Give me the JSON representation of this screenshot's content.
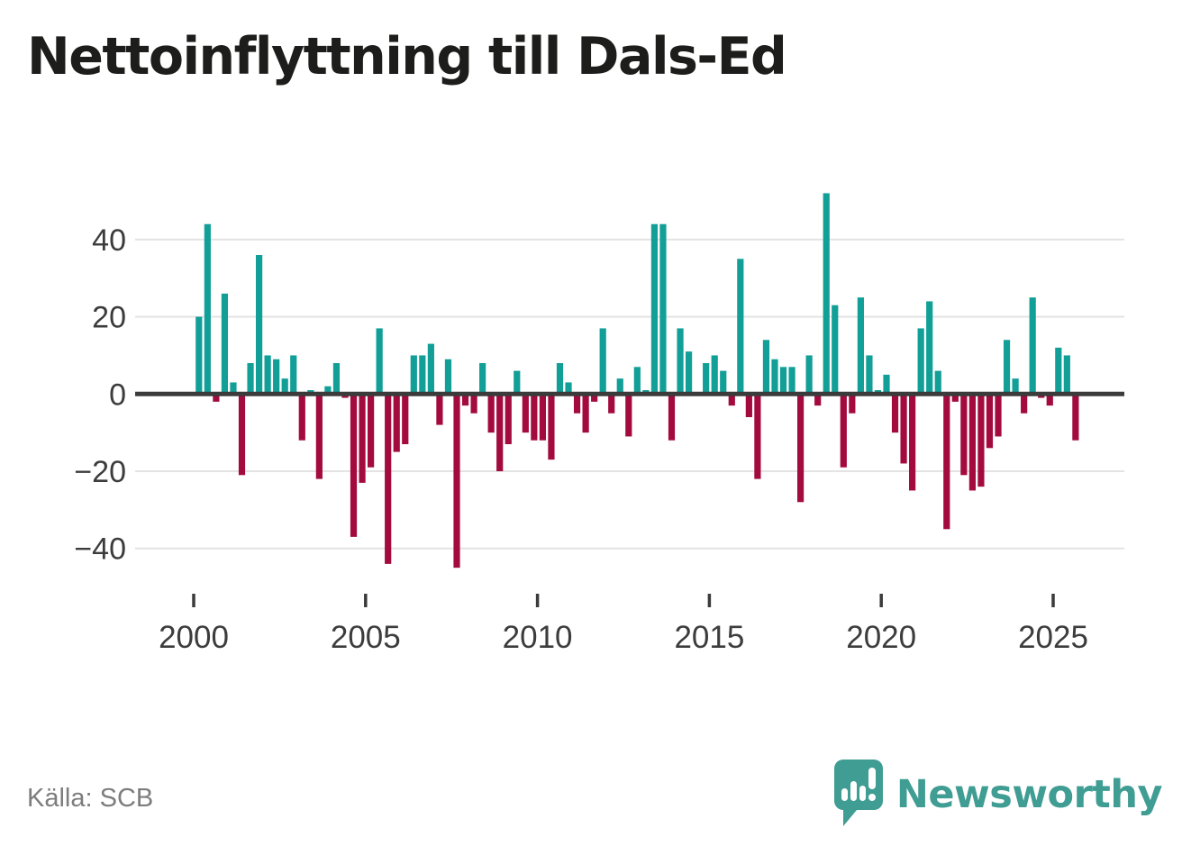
{
  "page": {
    "title": "Nettoinflyttning till Dals-Ed",
    "background": "#ffffff"
  },
  "footer": {
    "source_label": "Källa: SCB",
    "brand_name": "Newsworthy",
    "brand_color": "#3f9d93"
  },
  "chart_data": {
    "type": "bar",
    "title": "Nettoinflyttning till Dals-Ed",
    "frequency": "quarterly",
    "start_period": "2000 Q1",
    "end_period": "2025 Q3",
    "x_tick_labels": [
      "2000",
      "2005",
      "2010",
      "2015",
      "2020",
      "2025"
    ],
    "x_tick_years": [
      2000,
      2005,
      2010,
      2015,
      2020,
      2025
    ],
    "y_ticks": [
      40,
      20,
      0,
      -20,
      -40
    ],
    "ylim": [
      -50,
      55
    ],
    "grid": "horizontal",
    "legend": "none",
    "colors": {
      "positive": "#119f97",
      "negative": "#a30b3e",
      "zero_line": "#3b3b3b",
      "gridline": "#e3e3e3",
      "axis_text": "#3c3c3c"
    },
    "series": [
      {
        "name": "Nettoinflyttning",
        "values": [
          20,
          44,
          -2,
          26,
          3,
          -21,
          8,
          36,
          10,
          9,
          4,
          10,
          -12,
          1,
          -22,
          2,
          8,
          -1,
          -37,
          -23,
          -19,
          17,
          -44,
          -15,
          -13,
          10,
          10,
          13,
          -8,
          9,
          -45,
          -3,
          -5,
          8,
          -10,
          -20,
          -13,
          6,
          -10,
          -12,
          -12,
          -17,
          8,
          3,
          -5,
          -10,
          -2,
          17,
          -5,
          4,
          -11,
          7,
          1,
          44,
          44,
          -12,
          17,
          11,
          0,
          8,
          10,
          6,
          -3,
          35,
          -6,
          -22,
          14,
          9,
          7,
          7,
          -28,
          10,
          -3,
          52,
          23,
          -19,
          -5,
          25,
          10,
          1,
          5,
          -10,
          -18,
          -25,
          17,
          24,
          6,
          -35,
          -2,
          -21,
          -25,
          -24,
          -14,
          -11,
          14,
          4,
          -5,
          25,
          -1,
          -3,
          12,
          10,
          -12
        ]
      }
    ]
  }
}
